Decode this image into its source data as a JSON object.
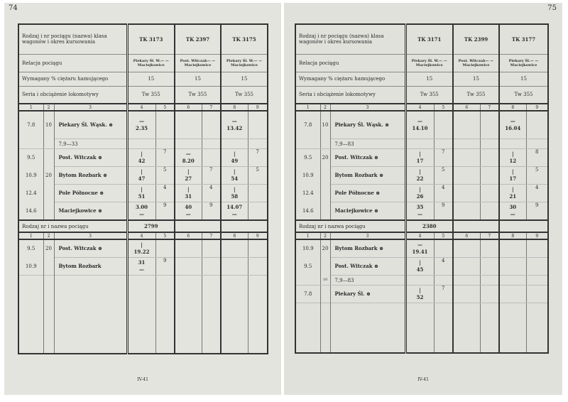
{
  "labels": {
    "train": "Rodzaj i nr pociągu (nazwa) klasa wagonów i okres kursowania",
    "relation": "Relacja pociągu",
    "brake": "Wymagany % ciężaru hamującego",
    "loco": "Seria i obciążenie lokomotywy",
    "train2": "Rodzaj nr i nazwa pociągu"
  },
  "col_numbers": [
    "1",
    "2",
    "3",
    "4",
    "5",
    "6",
    "7",
    "8",
    "9"
  ],
  "pages": [
    {
      "page_number": "74",
      "footer": "IV-41",
      "trains": [
        {
          "name": "TK 3173",
          "relation": "Piekary Śl. W.— —Maciejkowice",
          "brake": "15",
          "loco": "Tw 355"
        },
        {
          "name": "TK 2397",
          "relation": "Post. Witczak— —Maciejkowice",
          "brake": "15",
          "loco": "Tw 355"
        },
        {
          "name": "TK 3175",
          "relation": "Piekary Śl. W.— —Maciejkowice",
          "brake": "15",
          "loco": "Tw 355"
        }
      ],
      "stations": [
        {
          "km": "7.8",
          "grad": "10",
          "name": "Piekary Śl. Wąsk. ⊕",
          "cells": [
            [
              "—",
              "2.35"
            ],
            [
              ""
            ],
            [
              "",
              ""
            ],
            [
              ""
            ],
            [
              "—",
              "13.42"
            ],
            [
              ""
            ]
          ]
        },
        {
          "note": "7,9—33"
        },
        {
          "km": "9.5",
          "grad": "",
          "name": "Post. Witczak ⊕",
          "cells": [
            [
              "|",
              "42"
            ],
            [
              "7"
            ],
            [
              "—",
              "8.20"
            ],
            [
              ""
            ],
            [
              "|",
              "49"
            ],
            [
              "7"
            ]
          ]
        },
        {
          "km": "10.9",
          "grad": "20",
          "name": "Bytom Rozbark ⊕",
          "cells": [
            [
              "|",
              "47"
            ],
            [
              "5"
            ],
            [
              "|",
              "27"
            ],
            [
              "7"
            ],
            [
              "|",
              "54"
            ],
            [
              "5"
            ]
          ]
        },
        {
          "km": "12.4",
          "grad": "",
          "name": "Pole Północne ⊕",
          "cells": [
            [
              "|",
              "51"
            ],
            [
              "4"
            ],
            [
              "|",
              "31"
            ],
            [
              "4"
            ],
            [
              "|",
              "58"
            ],
            [
              ""
            ]
          ]
        },
        {
          "km": "14.6",
          "grad": "",
          "name": "Maciejkowice ⊕",
          "cells": [
            [
              "3.00",
              "—"
            ],
            [
              "9"
            ],
            [
              "40",
              "—"
            ],
            [
              "9"
            ],
            [
              "14.07",
              "—"
            ],
            [
              ""
            ]
          ]
        }
      ],
      "trains2": [
        "2799",
        "",
        ""
      ],
      "stations2": [
        {
          "km": "9.5",
          "grad": "20",
          "name": "Post. Witczak ⊕",
          "cells": [
            [
              "|",
              "19.22"
            ],
            [
              ""
            ],
            [
              "",
              ""
            ],
            [
              ""
            ],
            [
              "",
              ""
            ],
            [
              ""
            ]
          ]
        },
        {
          "km": "10.9",
          "grad": "",
          "name": "Bytom Rozbark",
          "cells": [
            [
              "31",
              "—"
            ],
            [
              "9"
            ],
            [
              "",
              ""
            ],
            [
              ""
            ],
            [
              "",
              ""
            ],
            [
              ""
            ]
          ]
        }
      ]
    },
    {
      "page_number": "75",
      "footer": "IV-41",
      "trains": [
        {
          "name": "TK 3171",
          "relation": "Piekary Śl. W.— —Maciejkowice",
          "brake": "15",
          "loco": "Tw 355"
        },
        {
          "name": "TK 2399",
          "relation": "Post. Witczak— —Maciejkowice",
          "brake": "15",
          "loco": "Tw 355"
        },
        {
          "name": "TK 3177",
          "relation": "Piekary Śl.— —Maciejkowice",
          "brake": "15",
          "loco": "Tw 355"
        }
      ],
      "stations": [
        {
          "km": "7.8",
          "grad": "10",
          "name": "Piekary Śl. Wąsk. ⊕",
          "cells": [
            [
              "—",
              "14.10"
            ],
            [
              ""
            ],
            [
              "",
              ""
            ],
            [
              ""
            ],
            [
              "—",
              "16.04"
            ],
            [
              ""
            ]
          ]
        },
        {
          "note": "7,9—83"
        },
        {
          "km": "9.5",
          "grad": "20",
          "name": "Post. Witczak ⊕",
          "cells": [
            [
              "|",
              "17"
            ],
            [
              "7"
            ],
            [
              "",
              ""
            ],
            [
              ""
            ],
            [
              "|",
              "12"
            ],
            [
              "8"
            ]
          ]
        },
        {
          "km": "10.9",
          "grad": "",
          "name": "Bytom Rozbark ⊕",
          "cells": [
            [
              "|",
              "22"
            ],
            [
              "5"
            ],
            [
              "",
              ""
            ],
            [
              ""
            ],
            [
              "|",
              "17"
            ],
            [
              "5"
            ]
          ]
        },
        {
          "km": "12.4",
          "grad": "",
          "name": "Pole Północne ⊕",
          "cells": [
            [
              "|",
              "26"
            ],
            [
              "4"
            ],
            [
              "",
              ""
            ],
            [
              ""
            ],
            [
              "|",
              "21"
            ],
            [
              "4"
            ]
          ]
        },
        {
          "km": "14.6",
          "grad": "",
          "name": "Maciejkowice ⊕",
          "cells": [
            [
              "35",
              "—"
            ],
            [
              "9"
            ],
            [
              "",
              ""
            ],
            [
              ""
            ],
            [
              "30",
              "—"
            ],
            [
              "9"
            ]
          ]
        }
      ],
      "trains2": [
        "2380",
        "",
        ""
      ],
      "stations2": [
        {
          "km": "10.9",
          "grad": "20",
          "name": "Bytom Rozbark ⊕",
          "cells": [
            [
              "—",
              "19.41"
            ],
            [
              ""
            ],
            [
              "",
              ""
            ],
            [
              ""
            ],
            [
              "",
              ""
            ],
            [
              ""
            ]
          ]
        },
        {
          "km": "9.5",
          "grad": "",
          "name": "Post. Witczak ⊕",
          "cells": [
            [
              "|",
              "45"
            ],
            [
              "4"
            ],
            [
              "",
              ""
            ],
            [
              ""
            ],
            [
              "",
              ""
            ],
            [
              ""
            ]
          ]
        },
        {
          "grad": "10",
          "note": "7,9—83"
        },
        {
          "km": "7.8",
          "grad": "",
          "name": "Piekary Śl. ⊕",
          "cells": [
            [
              "|",
              "52"
            ],
            [
              "7"
            ],
            [
              "",
              ""
            ],
            [
              ""
            ],
            [
              "",
              ""
            ],
            [
              ""
            ]
          ]
        }
      ]
    }
  ]
}
